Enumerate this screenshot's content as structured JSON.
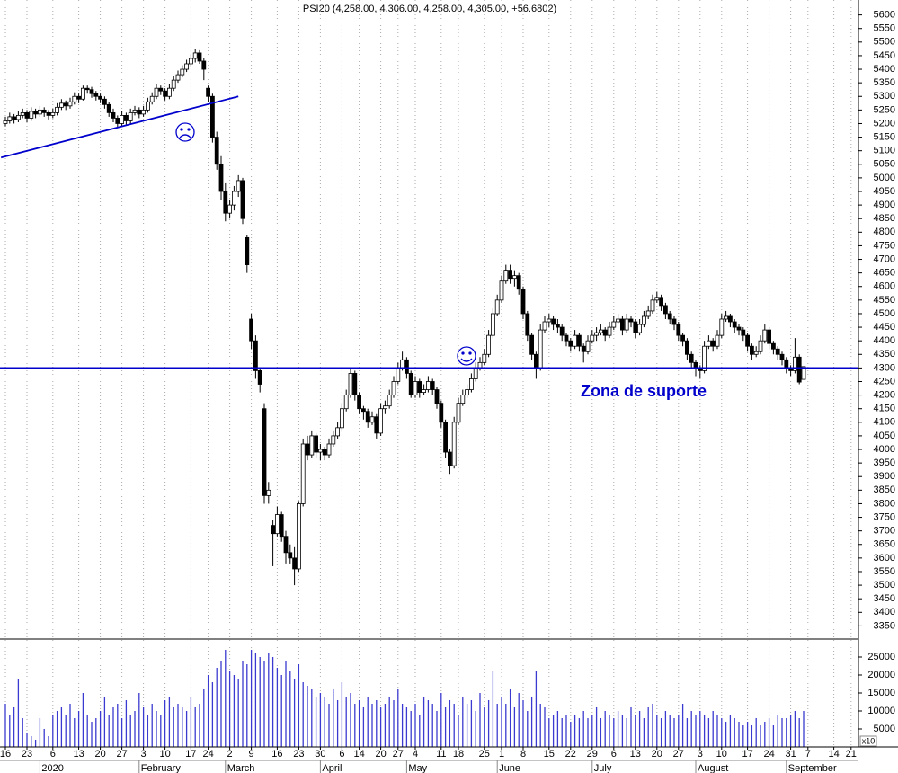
{
  "chart_data": {
    "type": "candlestick",
    "title": "PSI20 (4,258.00, 4,306.00, 4,258.00, 4,305.00, +56.6802)",
    "annotation": "Zona de suporte",
    "support": 4300,
    "trendline": {
      "x": [
        -1,
        54
      ],
      "y": [
        5075,
        5300
      ]
    },
    "up_color": "#ffffff",
    "down_color": "#000000",
    "line_color": "#0000cc",
    "volume_color": "#3a3ad0",
    "ylim": [
      3305,
      5655
    ],
    "yticks": [
      3350,
      3400,
      3450,
      3500,
      3550,
      3600,
      3650,
      3700,
      3750,
      3800,
      3850,
      3900,
      3950,
      4000,
      4050,
      4100,
      4150,
      4200,
      4250,
      4300,
      4350,
      4400,
      4450,
      4500,
      4550,
      4600,
      4650,
      4700,
      4750,
      4800,
      4850,
      4900,
      4950,
      5000,
      5050,
      5100,
      5150,
      5200,
      5250,
      5300,
      5350,
      5400,
      5450,
      5500,
      5550,
      5600
    ],
    "y2lim": [
      0,
      30000
    ],
    "y2ticks": [
      5000,
      10000,
      15000,
      20000,
      25000
    ],
    "y2_unit": "x10",
    "xticks": [
      {
        "value": 0,
        "label": "16"
      },
      {
        "value": 5,
        "label": "23"
      },
      {
        "value": 11,
        "label": "6"
      },
      {
        "value": 17,
        "label": "13"
      },
      {
        "value": 22,
        "label": "20"
      },
      {
        "value": 27,
        "label": "27"
      },
      {
        "value": 32,
        "label": "3"
      },
      {
        "value": 37,
        "label": "10"
      },
      {
        "value": 43,
        "label": "17"
      },
      {
        "value": 47,
        "label": "24"
      },
      {
        "value": 52,
        "label": "2"
      },
      {
        "value": 57,
        "label": "9"
      },
      {
        "value": 63,
        "label": "16"
      },
      {
        "value": 68,
        "label": "23"
      },
      {
        "value": 73,
        "label": "30"
      },
      {
        "value": 78,
        "label": "6"
      },
      {
        "value": 82,
        "label": "14"
      },
      {
        "value": 87,
        "label": "20"
      },
      {
        "value": 91,
        "label": "27"
      },
      {
        "value": 95,
        "label": "4"
      },
      {
        "value": 101,
        "label": "11"
      },
      {
        "value": 105,
        "label": "18"
      },
      {
        "value": 111,
        "label": "25"
      },
      {
        "value": 115,
        "label": "1"
      },
      {
        "value": 120,
        "label": "8"
      },
      {
        "value": 126,
        "label": "15"
      },
      {
        "value": 131,
        "label": "22"
      },
      {
        "value": 136,
        "label": "29"
      },
      {
        "value": 141,
        "label": "6"
      },
      {
        "value": 146,
        "label": "13"
      },
      {
        "value": 151,
        "label": "20"
      },
      {
        "value": 156,
        "label": "27"
      },
      {
        "value": 161,
        "label": "3"
      },
      {
        "value": 166,
        "label": "10"
      },
      {
        "value": 172,
        "label": "17"
      },
      {
        "value": 177,
        "label": "24"
      },
      {
        "value": 182,
        "label": "31"
      },
      {
        "value": 186,
        "label": "7"
      },
      {
        "value": 192,
        "label": "14"
      },
      {
        "value": 196,
        "label": "21"
      }
    ],
    "months": [
      {
        "value": 8,
        "label": "2020"
      },
      {
        "value": 31,
        "label": "February"
      },
      {
        "value": 51,
        "label": "March"
      },
      {
        "value": 73,
        "label": "April"
      },
      {
        "value": 93,
        "label": "May"
      },
      {
        "value": 114,
        "label": "June"
      },
      {
        "value": 136,
        "label": "July"
      },
      {
        "value": 160,
        "label": "August"
      },
      {
        "value": 181,
        "label": "September"
      }
    ],
    "ohlc": [
      [
        5200,
        5225,
        5190,
        5210
      ],
      [
        5210,
        5240,
        5200,
        5225
      ],
      [
        5225,
        5235,
        5200,
        5215
      ],
      [
        5215,
        5245,
        5205,
        5230
      ],
      [
        5230,
        5255,
        5220,
        5240
      ],
      [
        5240,
        5250,
        5205,
        5220
      ],
      [
        5220,
        5260,
        5210,
        5245
      ],
      [
        5245,
        5255,
        5220,
        5235
      ],
      [
        5235,
        5265,
        5225,
        5250
      ],
      [
        5250,
        5260,
        5225,
        5240
      ],
      [
        5240,
        5250,
        5215,
        5230
      ],
      [
        5230,
        5255,
        5220,
        5240
      ],
      [
        5240,
        5275,
        5230,
        5260
      ],
      [
        5260,
        5290,
        5250,
        5275
      ],
      [
        5275,
        5285,
        5250,
        5265
      ],
      [
        5265,
        5295,
        5255,
        5280
      ],
      [
        5280,
        5315,
        5270,
        5300
      ],
      [
        5300,
        5310,
        5275,
        5290
      ],
      [
        5290,
        5340,
        5285,
        5330
      ],
      [
        5330,
        5340,
        5310,
        5325
      ],
      [
        5325,
        5335,
        5295,
        5310
      ],
      [
        5310,
        5320,
        5285,
        5300
      ],
      [
        5300,
        5310,
        5275,
        5290
      ],
      [
        5290,
        5300,
        5255,
        5270
      ],
      [
        5270,
        5280,
        5225,
        5240
      ],
      [
        5240,
        5255,
        5205,
        5220
      ],
      [
        5220,
        5230,
        5185,
        5200
      ],
      [
        5200,
        5245,
        5190,
        5230
      ],
      [
        5230,
        5240,
        5195,
        5210
      ],
      [
        5210,
        5255,
        5200,
        5240
      ],
      [
        5240,
        5265,
        5230,
        5250
      ],
      [
        5250,
        5260,
        5220,
        5235
      ],
      [
        5235,
        5265,
        5225,
        5250
      ],
      [
        5250,
        5295,
        5240,
        5280
      ],
      [
        5280,
        5315,
        5270,
        5300
      ],
      [
        5300,
        5345,
        5290,
        5330
      ],
      [
        5330,
        5340,
        5305,
        5320
      ],
      [
        5320,
        5330,
        5285,
        5300
      ],
      [
        5300,
        5345,
        5290,
        5330
      ],
      [
        5330,
        5375,
        5320,
        5360
      ],
      [
        5360,
        5395,
        5350,
        5380
      ],
      [
        5380,
        5415,
        5370,
        5400
      ],
      [
        5400,
        5435,
        5390,
        5420
      ],
      [
        5420,
        5455,
        5410,
        5440
      ],
      [
        5440,
        5475,
        5425,
        5460
      ],
      [
        5460,
        5470,
        5420,
        5430
      ],
      [
        5430,
        5440,
        5360,
        5400
      ],
      [
        5330,
        5340,
        5280,
        5300
      ],
      [
        5300,
        5310,
        5130,
        5150
      ],
      [
        5150,
        5170,
        5030,
        5050
      ],
      [
        5050,
        5080,
        4920,
        4950
      ],
      [
        4950,
        4980,
        4840,
        4870
      ],
      [
        4870,
        4920,
        4850,
        4900
      ],
      [
        4900,
        4970,
        4880,
        4950
      ],
      [
        4950,
        5010,
        4930,
        4990
      ],
      [
        4990,
        5000,
        4830,
        4850
      ],
      [
        4780,
        4790,
        4650,
        4680
      ],
      [
        4480,
        4500,
        4370,
        4400
      ],
      [
        4400,
        4420,
        4260,
        4290
      ],
      [
        4290,
        4300,
        4210,
        4240
      ],
      [
        4150,
        4170,
        3800,
        3830
      ],
      [
        3830,
        3880,
        3800,
        3850
      ],
      [
        3720,
        3740,
        3570,
        3690
      ],
      [
        3690,
        3790,
        3680,
        3760
      ],
      [
        3760,
        3770,
        3660,
        3680
      ],
      [
        3680,
        3700,
        3580,
        3620
      ],
      [
        3620,
        3650,
        3580,
        3600
      ],
      [
        3600,
        3640,
        3500,
        3560
      ],
      [
        3560,
        3810,
        3550,
        3800
      ],
      [
        3800,
        4040,
        3790,
        4020
      ],
      [
        4020,
        4050,
        3960,
        3980
      ],
      [
        3980,
        4070,
        3970,
        4050
      ],
      [
        4050,
        4060,
        3970,
        3990
      ],
      [
        3990,
        4020,
        3960,
        4000
      ],
      [
        4000,
        4010,
        3960,
        3980
      ],
      [
        3980,
        4040,
        3970,
        4020
      ],
      [
        4020,
        4070,
        4010,
        4050
      ],
      [
        4050,
        4100,
        4040,
        4080
      ],
      [
        4080,
        4170,
        4070,
        4150
      ],
      [
        4150,
        4220,
        4140,
        4200
      ],
      [
        4200,
        4300,
        4190,
        4280
      ],
      [
        4280,
        4290,
        4180,
        4200
      ],
      [
        4200,
        4210,
        4130,
        4150
      ],
      [
        4150,
        4160,
        4110,
        4140
      ],
      [
        4140,
        4150,
        4080,
        4100
      ],
      [
        4100,
        4140,
        4090,
        4120
      ],
      [
        4120,
        4130,
        4040,
        4060
      ],
      [
        4060,
        4170,
        4050,
        4150
      ],
      [
        4150,
        4180,
        4130,
        4160
      ],
      [
        4160,
        4220,
        4150,
        4200
      ],
      [
        4200,
        4270,
        4190,
        4250
      ],
      [
        4250,
        4320,
        4240,
        4300
      ],
      [
        4300,
        4360,
        4290,
        4330
      ],
      [
        4330,
        4340,
        4260,
        4280
      ],
      [
        4280,
        4290,
        4190,
        4200
      ],
      [
        4200,
        4270,
        4190,
        4250
      ],
      [
        4250,
        4260,
        4190,
        4210
      ],
      [
        4210,
        4240,
        4200,
        4220
      ],
      [
        4220,
        4270,
        4210,
        4250
      ],
      [
        4250,
        4260,
        4200,
        4220
      ],
      [
        4220,
        4230,
        4150,
        4170
      ],
      [
        4170,
        4180,
        4080,
        4100
      ],
      [
        4100,
        4110,
        3970,
        3990
      ],
      [
        3990,
        4000,
        3910,
        3940
      ],
      [
        3940,
        4120,
        3930,
        4100
      ],
      [
        4100,
        4190,
        4090,
        4170
      ],
      [
        4170,
        4220,
        4160,
        4200
      ],
      [
        4200,
        4240,
        4190,
        4220
      ],
      [
        4220,
        4280,
        4210,
        4260
      ],
      [
        4260,
        4320,
        4250,
        4300
      ],
      [
        4300,
        4340,
        4290,
        4320
      ],
      [
        4320,
        4370,
        4310,
        4350
      ],
      [
        4350,
        4440,
        4340,
        4420
      ],
      [
        4420,
        4520,
        4410,
        4500
      ],
      [
        4500,
        4570,
        4490,
        4550
      ],
      [
        4550,
        4640,
        4540,
        4620
      ],
      [
        4620,
        4680,
        4610,
        4660
      ],
      [
        4660,
        4680,
        4610,
        4630
      ],
      [
        4630,
        4660,
        4600,
        4640
      ],
      [
        4640,
        4650,
        4570,
        4590
      ],
      [
        4590,
        4600,
        4480,
        4500
      ],
      [
        4500,
        4510,
        4400,
        4420
      ],
      [
        4420,
        4430,
        4330,
        4350
      ],
      [
        4350,
        4360,
        4260,
        4300
      ],
      [
        4300,
        4460,
        4290,
        4440
      ],
      [
        4440,
        4490,
        4430,
        4470
      ],
      [
        4470,
        4500,
        4450,
        4480
      ],
      [
        4480,
        4490,
        4440,
        4460
      ],
      [
        4460,
        4480,
        4430,
        4450
      ],
      [
        4450,
        4460,
        4400,
        4420
      ],
      [
        4420,
        4430,
        4380,
        4400
      ],
      [
        4400,
        4410,
        4360,
        4380
      ],
      [
        4380,
        4440,
        4370,
        4420
      ],
      [
        4420,
        4430,
        4360,
        4380
      ],
      [
        4380,
        4390,
        4320,
        4360
      ],
      [
        4360,
        4420,
        4350,
        4400
      ],
      [
        4400,
        4440,
        4390,
        4420
      ],
      [
        4420,
        4450,
        4400,
        4430
      ],
      [
        4430,
        4460,
        4420,
        4440
      ],
      [
        4440,
        4450,
        4400,
        4420
      ],
      [
        4420,
        4470,
        4410,
        4450
      ],
      [
        4450,
        4490,
        4440,
        4470
      ],
      [
        4470,
        4500,
        4460,
        4480
      ],
      [
        4480,
        4490,
        4420,
        4440
      ],
      [
        4440,
        4500,
        4430,
        4480
      ],
      [
        4480,
        4490,
        4450,
        4470
      ],
      [
        4470,
        4480,
        4410,
        4430
      ],
      [
        4430,
        4480,
        4420,
        4460
      ],
      [
        4460,
        4510,
        4450,
        4490
      ],
      [
        4490,
        4530,
        4480,
        4510
      ],
      [
        4510,
        4570,
        4500,
        4550
      ],
      [
        4550,
        4580,
        4540,
        4560
      ],
      [
        4560,
        4570,
        4510,
        4530
      ],
      [
        4530,
        4540,
        4480,
        4500
      ],
      [
        4500,
        4510,
        4460,
        4480
      ],
      [
        4480,
        4490,
        4440,
        4460
      ],
      [
        4460,
        4470,
        4400,
        4420
      ],
      [
        4420,
        4430,
        4380,
        4400
      ],
      [
        4400,
        4410,
        4330,
        4350
      ],
      [
        4350,
        4360,
        4300,
        4320
      ],
      [
        4320,
        4330,
        4270,
        4300
      ],
      [
        4300,
        4310,
        4260,
        4290
      ],
      [
        4290,
        4400,
        4280,
        4380
      ],
      [
        4380,
        4420,
        4370,
        4400
      ],
      [
        4400,
        4410,
        4360,
        4380
      ],
      [
        4380,
        4440,
        4370,
        4420
      ],
      [
        4420,
        4500,
        4410,
        4480
      ],
      [
        4480,
        4510,
        4470,
        4490
      ],
      [
        4490,
        4500,
        4450,
        4470
      ],
      [
        4470,
        4480,
        4430,
        4450
      ],
      [
        4450,
        4460,
        4420,
        4440
      ],
      [
        4440,
        4450,
        4400,
        4420
      ],
      [
        4420,
        4430,
        4360,
        4380
      ],
      [
        4380,
        4390,
        4330,
        4350
      ],
      [
        4350,
        4380,
        4340,
        4360
      ],
      [
        4360,
        4420,
        4350,
        4400
      ],
      [
        4400,
        4460,
        4390,
        4440
      ],
      [
        4440,
        4450,
        4370,
        4390
      ],
      [
        4390,
        4400,
        4350,
        4370
      ],
      [
        4370,
        4380,
        4330,
        4350
      ],
      [
        4350,
        4360,
        4310,
        4330
      ],
      [
        4330,
        4340,
        4280,
        4300
      ],
      [
        4300,
        4310,
        4270,
        4290
      ],
      [
        4290,
        4410,
        4280,
        4340
      ],
      [
        4340,
        4350,
        4240,
        4248
      ],
      [
        4258,
        4306,
        4258,
        4305
      ]
    ],
    "volume": [
      12000,
      9000,
      11000,
      19000,
      8000,
      4000,
      3000,
      2000,
      8000,
      5000,
      3000,
      9000,
      10000,
      11000,
      9000,
      12000,
      8000,
      10000,
      15000,
      9000,
      7000,
      8000,
      10000,
      14000,
      9000,
      11000,
      12000,
      8000,
      13000,
      9000,
      10000,
      15000,
      11000,
      9000,
      12000,
      10000,
      9000,
      13000,
      14000,
      11000,
      12000,
      11000,
      10000,
      14000,
      11000,
      12000,
      16000,
      20000,
      18000,
      22000,
      24000,
      27000,
      21000,
      20000,
      19000,
      24000,
      23000,
      27000,
      26000,
      25000,
      24000,
      26000,
      25000,
      22000,
      20000,
      24000,
      21000,
      19000,
      23000,
      18000,
      17000,
      16000,
      14000,
      15000,
      14000,
      12000,
      16000,
      13000,
      18000,
      14000,
      15000,
      12000,
      13000,
      11000,
      14000,
      12000,
      13000,
      11000,
      12000,
      14000,
      13000,
      16000,
      12000,
      11000,
      10000,
      12000,
      9000,
      14000,
      13000,
      12000,
      10000,
      15000,
      11000,
      13000,
      12000,
      9000,
      14000,
      12000,
      13000,
      10000,
      15000,
      11000,
      13000,
      21000,
      12000,
      14000,
      12000,
      16000,
      11000,
      15000,
      13000,
      10000,
      14000,
      21000,
      12000,
      11000,
      8000,
      9000,
      10000,
      8000,
      9000,
      7000,
      9000,
      8000,
      10000,
      8000,
      9000,
      11000,
      8000,
      10000,
      9000,
      8000,
      10000,
      9000,
      8000,
      11000,
      9000,
      10000,
      8000,
      11000,
      12000,
      9000,
      8000,
      10000,
      9000,
      8000,
      9000,
      12000,
      8000,
      10000,
      9000,
      10000,
      9000,
      8000,
      10000,
      9000,
      8000,
      7000,
      9000,
      8000,
      7000,
      6000,
      7000,
      6000,
      8000,
      6000,
      7000,
      8000,
      6000,
      9000,
      8000,
      8000,
      9000,
      10000,
      8000,
      10000
    ]
  }
}
